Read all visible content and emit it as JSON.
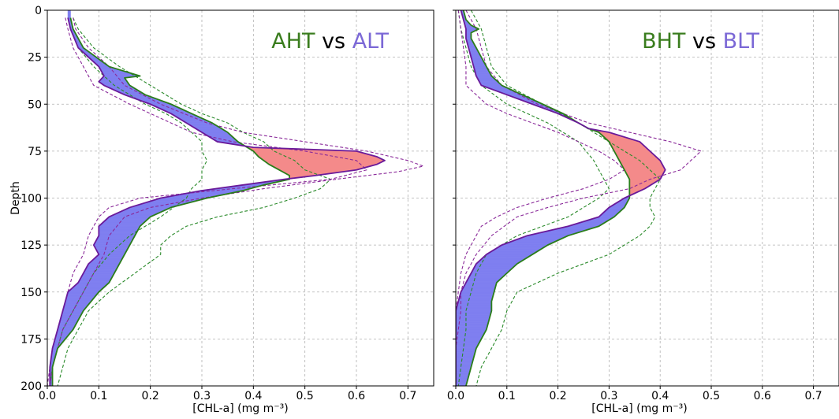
{
  "chart_data": [
    {
      "type": "line",
      "title_parts": [
        {
          "text": "AHT",
          "color": "#3a7d1e"
        },
        {
          "text": " vs ",
          "color": "#000000"
        },
        {
          "text": "ALT",
          "color": "#7b68d6"
        }
      ],
      "xlabel": "[CHL-a] (mg m⁻³)",
      "ylabel": "Depth",
      "xlim": [
        0,
        0.75
      ],
      "ylim": [
        200,
        0
      ],
      "xticks": [
        "0.0",
        "0.1",
        "0.2",
        "0.3",
        "0.4",
        "0.5",
        "0.6",
        "0.7"
      ],
      "yticks": [
        "0",
        "25",
        "50",
        "75",
        "100",
        "125",
        "150",
        "175",
        "200"
      ],
      "grid": true,
      "fill_colors": {
        "green_greater": "#7f7ff0",
        "purple_greater": "#f48a8a"
      },
      "series": [
        {
          "role": "mean-high",
          "color": "#2a7d1a",
          "style": "solid",
          "depth": [
            4,
            10,
            20,
            30,
            35,
            36,
            40,
            45,
            50,
            55,
            60,
            65,
            70,
            75,
            78,
            82,
            85,
            88,
            90,
            93,
            96,
            100,
            105,
            110,
            115,
            120,
            125,
            130,
            135,
            140,
            145,
            150,
            160,
            170,
            180,
            190,
            200
          ],
          "value": [
            0.045,
            0.05,
            0.07,
            0.12,
            0.18,
            0.15,
            0.16,
            0.19,
            0.24,
            0.28,
            0.32,
            0.35,
            0.37,
            0.4,
            0.41,
            0.43,
            0.45,
            0.47,
            0.47,
            0.42,
            0.38,
            0.31,
            0.24,
            0.2,
            0.18,
            0.17,
            0.16,
            0.15,
            0.14,
            0.13,
            0.12,
            0.1,
            0.07,
            0.05,
            0.02,
            0.01,
            0.01
          ]
        },
        {
          "role": "mean-low",
          "color": "#6a1a9a",
          "style": "solid",
          "depth": [
            4,
            10,
            20,
            30,
            35,
            38,
            40,
            45,
            50,
            55,
            60,
            65,
            70,
            73,
            75,
            78,
            80,
            82,
            85,
            88,
            90,
            93,
            96,
            100,
            105,
            110,
            115,
            120,
            125,
            130,
            135,
            140,
            145,
            150,
            160,
            170,
            180,
            190,
            200
          ],
          "value": [
            0.04,
            0.045,
            0.06,
            0.1,
            0.11,
            0.1,
            0.11,
            0.15,
            0.2,
            0.24,
            0.27,
            0.3,
            0.33,
            0.4,
            0.6,
            0.64,
            0.655,
            0.64,
            0.6,
            0.52,
            0.46,
            0.38,
            0.3,
            0.22,
            0.16,
            0.12,
            0.1,
            0.1,
            0.09,
            0.1,
            0.08,
            0.07,
            0.06,
            0.04,
            0.03,
            0.02,
            0.01,
            0.005,
            0.005
          ]
        },
        {
          "role": "high-upper",
          "color": "#2a8a2a",
          "style": "dashed",
          "depth": [
            4,
            10,
            20,
            30,
            40,
            50,
            55,
            60,
            65,
            70,
            75,
            80,
            85,
            90,
            95,
            100,
            105,
            110,
            115,
            120,
            125,
            130,
            140,
            150,
            160,
            170,
            180,
            190,
            200
          ],
          "value": [
            0.05,
            0.06,
            0.09,
            0.14,
            0.2,
            0.26,
            0.3,
            0.35,
            0.38,
            0.42,
            0.44,
            0.48,
            0.5,
            0.55,
            0.53,
            0.48,
            0.42,
            0.33,
            0.27,
            0.24,
            0.22,
            0.22,
            0.17,
            0.12,
            0.08,
            0.06,
            0.04,
            0.03,
            0.02
          ]
        },
        {
          "role": "high-lower",
          "color": "#2a8a2a",
          "style": "dashed",
          "depth": [
            4,
            10,
            20,
            30,
            40,
            50,
            55,
            60,
            65,
            70,
            75,
            80,
            85,
            90,
            95,
            100,
            110,
            120,
            130,
            140,
            150,
            160,
            170,
            180,
            190,
            200
          ],
          "value": [
            0.04,
            0.045,
            0.06,
            0.09,
            0.13,
            0.19,
            0.23,
            0.26,
            0.28,
            0.3,
            0.3,
            0.31,
            0.3,
            0.3,
            0.28,
            0.27,
            0.22,
            0.16,
            0.12,
            0.09,
            0.07,
            0.05,
            0.03,
            0.02,
            0.01,
            0.005
          ]
        },
        {
          "role": "low-upper",
          "color": "#8a2a9a",
          "style": "dashed",
          "depth": [
            4,
            10,
            20,
            30,
            40,
            50,
            60,
            65,
            70,
            75,
            80,
            83,
            86,
            90,
            95,
            100,
            105,
            110,
            120,
            130,
            140,
            150,
            160,
            170,
            180,
            190,
            200
          ],
          "value": [
            0.05,
            0.055,
            0.08,
            0.12,
            0.15,
            0.22,
            0.31,
            0.38,
            0.5,
            0.62,
            0.7,
            0.73,
            0.68,
            0.56,
            0.42,
            0.3,
            0.2,
            0.15,
            0.12,
            0.11,
            0.09,
            0.07,
            0.05,
            0.03,
            0.02,
            0.01,
            0.005
          ]
        },
        {
          "role": "low-lower",
          "color": "#8a2a9a",
          "style": "dashed",
          "depth": [
            4,
            10,
            20,
            30,
            40,
            50,
            55,
            60,
            65,
            70,
            75,
            80,
            85,
            90,
            95,
            100,
            105,
            110,
            120,
            130,
            140,
            150,
            160,
            170,
            180,
            190,
            200
          ],
          "value": [
            0.035,
            0.04,
            0.05,
            0.07,
            0.09,
            0.16,
            0.2,
            0.24,
            0.28,
            0.36,
            0.5,
            0.6,
            0.62,
            0.55,
            0.36,
            0.18,
            0.12,
            0.1,
            0.08,
            0.07,
            0.05,
            0.04,
            0.03,
            0.02,
            0.01,
            0.005,
            0.0
          ]
        }
      ]
    },
    {
      "type": "line",
      "title_parts": [
        {
          "text": "BHT",
          "color": "#3a7d1e"
        },
        {
          "text": " vs ",
          "color": "#000000"
        },
        {
          "text": "BLT",
          "color": "#7b68d6"
        }
      ],
      "xlabel": "[CHL-a] (mg m⁻³)",
      "ylabel": "",
      "xlim": [
        0,
        0.75
      ],
      "ylim": [
        200,
        0
      ],
      "xticks": [
        "0.0",
        "0.1",
        "0.2",
        "0.3",
        "0.4",
        "0.5",
        "0.6",
        "0.7"
      ],
      "yticks": [],
      "grid": true,
      "fill_colors": {
        "green_greater": "#7f7ff0",
        "purple_greater": "#f48a8a"
      },
      "series": [
        {
          "role": "mean-high",
          "color": "#2a7d1a",
          "style": "solid",
          "depth": [
            0,
            5,
            8,
            10,
            12,
            15,
            20,
            25,
            30,
            35,
            40,
            45,
            50,
            55,
            60,
            63,
            65,
            70,
            75,
            80,
            85,
            90,
            95,
            100,
            105,
            110,
            115,
            120,
            125,
            130,
            135,
            140,
            145,
            150,
            155,
            160,
            170,
            180,
            190,
            200
          ],
          "value": [
            0.015,
            0.02,
            0.03,
            0.045,
            0.03,
            0.03,
            0.04,
            0.05,
            0.06,
            0.07,
            0.09,
            0.13,
            0.17,
            0.21,
            0.24,
            0.26,
            0.28,
            0.3,
            0.31,
            0.32,
            0.33,
            0.34,
            0.34,
            0.34,
            0.33,
            0.31,
            0.28,
            0.22,
            0.18,
            0.15,
            0.12,
            0.1,
            0.08,
            0.075,
            0.07,
            0.07,
            0.06,
            0.04,
            0.03,
            0.02
          ]
        },
        {
          "role": "mean-low",
          "color": "#6a1a9a",
          "style": "solid",
          "depth": [
            0,
            5,
            10,
            15,
            20,
            25,
            30,
            35,
            40,
            45,
            50,
            55,
            60,
            63,
            65,
            70,
            75,
            80,
            85,
            90,
            95,
            100,
            105,
            110,
            115,
            120,
            125,
            130,
            135,
            140,
            145,
            150,
            155,
            160,
            170,
            180,
            190,
            200
          ],
          "value": [
            0.01,
            0.015,
            0.02,
            0.02,
            0.025,
            0.03,
            0.035,
            0.04,
            0.05,
            0.1,
            0.15,
            0.2,
            0.24,
            0.26,
            0.3,
            0.36,
            0.38,
            0.4,
            0.41,
            0.4,
            0.37,
            0.33,
            0.3,
            0.28,
            0.22,
            0.14,
            0.09,
            0.06,
            0.04,
            0.03,
            0.02,
            0.01,
            0.005,
            0.0,
            0.0,
            0.0,
            0.0,
            0.0
          ]
        },
        {
          "role": "high-upper",
          "color": "#2a8a2a",
          "style": "dashed",
          "depth": [
            0,
            10,
            20,
            30,
            40,
            50,
            60,
            70,
            80,
            85,
            90,
            95,
            100,
            105,
            110,
            115,
            120,
            130,
            140,
            150,
            160,
            170,
            180,
            190,
            200
          ],
          "value": [
            0.03,
            0.05,
            0.06,
            0.07,
            0.1,
            0.17,
            0.24,
            0.3,
            0.36,
            0.38,
            0.4,
            0.39,
            0.38,
            0.38,
            0.39,
            0.38,
            0.36,
            0.3,
            0.2,
            0.12,
            0.1,
            0.09,
            0.07,
            0.05,
            0.04
          ]
        },
        {
          "role": "high-lower",
          "color": "#2a8a2a",
          "style": "dashed",
          "depth": [
            0,
            10,
            20,
            30,
            40,
            50,
            60,
            70,
            80,
            90,
            95,
            100,
            110,
            120,
            130,
            140,
            150,
            160,
            170,
            180,
            190,
            200
          ],
          "value": [
            0.005,
            0.01,
            0.02,
            0.03,
            0.05,
            0.1,
            0.18,
            0.24,
            0.27,
            0.29,
            0.3,
            0.28,
            0.22,
            0.12,
            0.06,
            0.04,
            0.03,
            0.02,
            0.02,
            0.015,
            0.01,
            0.005
          ]
        },
        {
          "role": "low-upper",
          "color": "#8a2a9a",
          "style": "dashed",
          "depth": [
            0,
            10,
            20,
            30,
            40,
            50,
            60,
            65,
            70,
            75,
            80,
            85,
            90,
            95,
            100,
            105,
            110,
            120,
            130,
            140,
            150,
            160,
            170,
            180,
            190,
            200
          ],
          "value": [
            0.02,
            0.04,
            0.05,
            0.06,
            0.09,
            0.16,
            0.26,
            0.34,
            0.42,
            0.48,
            0.46,
            0.44,
            0.38,
            0.34,
            0.25,
            0.18,
            0.12,
            0.07,
            0.04,
            0.02,
            0.01,
            0.01,
            0.005,
            0.0,
            0.0,
            0.0
          ]
        },
        {
          "role": "low-lower",
          "color": "#8a2a9a",
          "style": "dashed",
          "depth": [
            0,
            10,
            20,
            30,
            40,
            50,
            55,
            60,
            65,
            70,
            75,
            80,
            85,
            90,
            95,
            100,
            105,
            110,
            115,
            120,
            125,
            130,
            140,
            150,
            160,
            170,
            180,
            190,
            200
          ],
          "value": [
            0.005,
            0.01,
            0.015,
            0.02,
            0.02,
            0.06,
            0.1,
            0.15,
            0.2,
            0.24,
            0.28,
            0.31,
            0.33,
            0.3,
            0.25,
            0.18,
            0.12,
            0.08,
            0.05,
            0.04,
            0.03,
            0.02,
            0.01,
            0.005,
            0.0,
            0.0,
            0.0,
            0.0,
            0.0
          ]
        }
      ]
    }
  ]
}
